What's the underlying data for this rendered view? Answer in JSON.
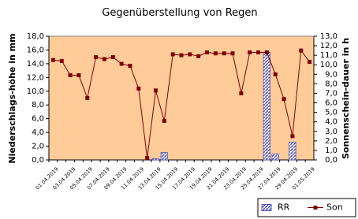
{
  "chart_data": {
    "type": "bar",
    "title": "Gegenüberstellung von Regen",
    "y_label": "Niederschlags-höhe in mm",
    "y2_label": "Sonnenschein-dauer in h",
    "categories": [
      "01.04.2019",
      null,
      "03.04.2019",
      null,
      "05.04.2019",
      null,
      "07.04.2019",
      null,
      "09.04.2019",
      null,
      "11.04.2019",
      null,
      "13.04.2019",
      null,
      "15.04.2019",
      null,
      "17.04.2019",
      null,
      "19.04.2019",
      null,
      "21.04.2019",
      null,
      "23.04.2019",
      null,
      "25.04.2019",
      null,
      "27.04.2019",
      null,
      "29.04.2019",
      null,
      "01.05.2019"
    ],
    "series": [
      {
        "name": "RR",
        "type": "bar",
        "axis": "y",
        "color": "#5a5ab4",
        "values": [
          0,
          0,
          0,
          0,
          0,
          0,
          0,
          0,
          0,
          0,
          0,
          0,
          0.2,
          1.1,
          0,
          0,
          0,
          0,
          0,
          0,
          0,
          0,
          0,
          0,
          0,
          15.7,
          0.9,
          0,
          2.6,
          0,
          0
        ]
      },
      {
        "name": "Son",
        "type": "line",
        "axis": "y2",
        "color": "#800000",
        "values": [
          10.5,
          10.4,
          8.9,
          8.9,
          6.5,
          10.8,
          10.6,
          10.8,
          10.1,
          9.9,
          7.5,
          0.2,
          7.3,
          4.1,
          11.1,
          11.0,
          11.1,
          10.9,
          11.3,
          11.2,
          11.2,
          11.2,
          7.0,
          11.3,
          11.3,
          11.3,
          9.0,
          6.4,
          2.5,
          11.5,
          10.3
        ]
      }
    ],
    "ylim": [
      0,
      18
    ],
    "yticks": [
      {
        "value": 0,
        "label": "0,0"
      },
      {
        "value": 2,
        "label": "2,0"
      },
      {
        "value": 4,
        "label": "4,0"
      },
      {
        "value": 6,
        "label": "6,0"
      },
      {
        "value": 8,
        "label": "8,0"
      },
      {
        "value": 10,
        "label": "10,0"
      },
      {
        "value": 12,
        "label": "12,0"
      },
      {
        "value": 14,
        "label": "14,0"
      },
      {
        "value": 16,
        "label": "16,0"
      },
      {
        "value": 18,
        "label": "18,0"
      }
    ],
    "y2lim": [
      0,
      13
    ],
    "y2ticks": [
      {
        "value": 0,
        "label": "0,0"
      },
      {
        "value": 1,
        "label": "1,0"
      },
      {
        "value": 2,
        "label": "2,0"
      },
      {
        "value": 3,
        "label": "3,0"
      },
      {
        "value": 4,
        "label": "4,0"
      },
      {
        "value": 5,
        "label": "5,0"
      },
      {
        "value": 6,
        "label": "6,0"
      },
      {
        "value": 7,
        "label": "7,0"
      },
      {
        "value": 8,
        "label": "8,0"
      },
      {
        "value": 9,
        "label": "9,0"
      },
      {
        "value": 10,
        "label": "10,0"
      },
      {
        "value": 11,
        "label": "11,0"
      },
      {
        "value": 12,
        "label": "12,0"
      },
      {
        "value": 13,
        "label": "13,0"
      }
    ],
    "grid": false,
    "background": "#ffcc99",
    "legend": "bottom-right"
  }
}
